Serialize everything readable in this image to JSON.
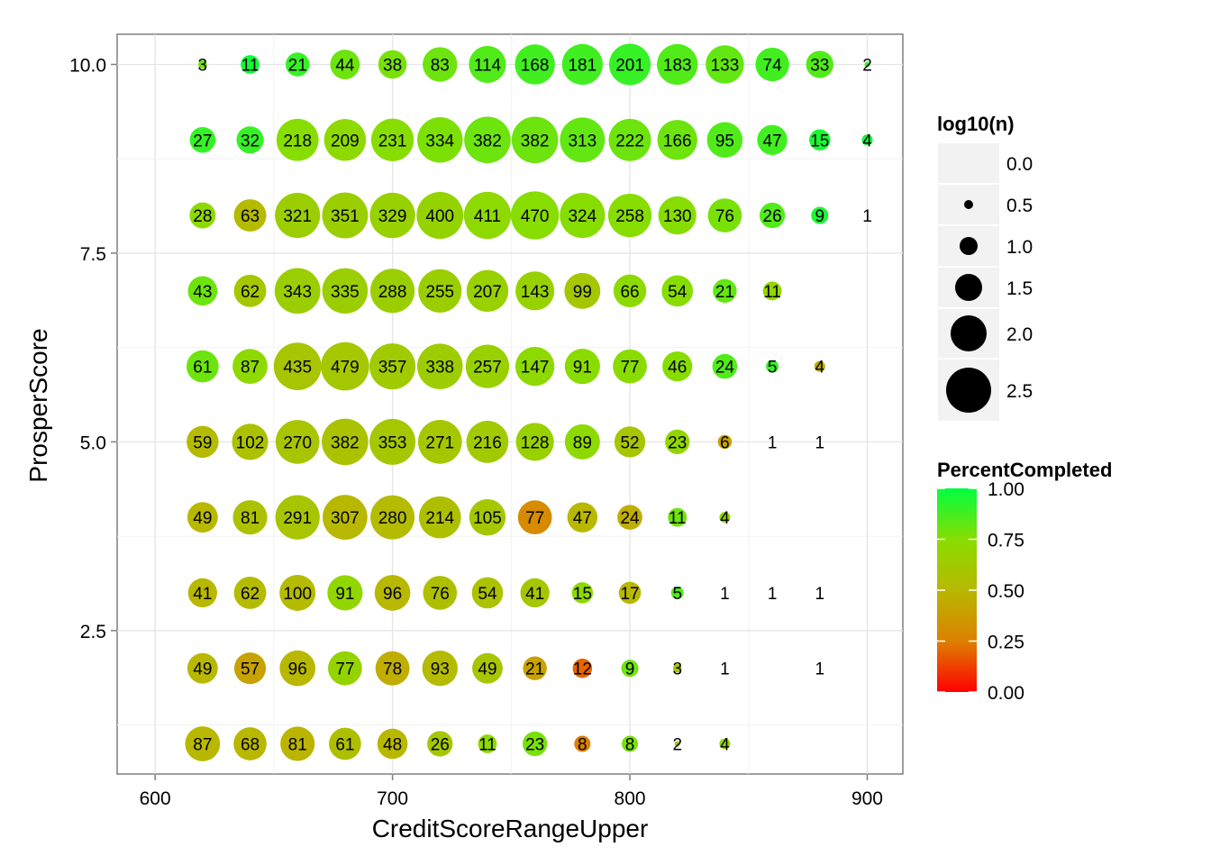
{
  "chart_data": {
    "type": "scatter",
    "title": "",
    "xlabel": "CreditScoreRangeUpper",
    "ylabel": "ProsperScore",
    "xlim": [
      584,
      915
    ],
    "ylim": [
      0.6,
      10.4
    ],
    "x_ticks": [
      600,
      700,
      800,
      900
    ],
    "x_tick_labels": [
      "600",
      "700",
      "800",
      "900"
    ],
    "y_ticks": [
      2.5,
      5.0,
      7.5,
      10.0
    ],
    "y_tick_labels": [
      "2.5",
      "5.0",
      "7.5",
      "10.0"
    ],
    "grid": true,
    "legend_placement": "right",
    "size_legend": {
      "title": "log10(n)",
      "values": [
        0.0,
        0.5,
        1.0,
        1.5,
        2.0,
        2.5
      ],
      "labels": [
        "0.0",
        "0.5",
        "1.0",
        "1.5",
        "2.0",
        "2.5"
      ]
    },
    "color_legend": {
      "title": "PercentCompleted",
      "values": [
        0.0,
        0.25,
        0.5,
        0.75,
        1.0
      ],
      "labels": [
        "0.00",
        "0.25",
        "0.50",
        "0.75",
        "1.00"
      ],
      "colors": [
        "#ff0000",
        "#dd8000",
        "#b8b800",
        "#88dd00",
        "#00ff40"
      ]
    },
    "x": [
      620,
      640,
      660,
      680,
      700,
      720,
      740,
      760,
      780,
      800,
      820,
      840,
      860,
      880,
      900
    ],
    "rows": [
      {
        "y": 10,
        "n": [
          3,
          11,
          21,
          44,
          38,
          83,
          114,
          168,
          181,
          201,
          183,
          133,
          74,
          33,
          2
        ],
        "pct": [
          0.8,
          0.97,
          0.9,
          0.8,
          0.78,
          0.8,
          0.85,
          0.88,
          0.88,
          0.9,
          0.85,
          0.82,
          0.88,
          0.85,
          0.9
        ]
      },
      {
        "y": 9,
        "n": [
          27,
          32,
          218,
          209,
          231,
          334,
          382,
          382,
          313,
          222,
          166,
          95,
          47,
          15,
          4
        ],
        "pct": [
          0.9,
          0.9,
          0.75,
          0.72,
          0.75,
          0.77,
          0.8,
          0.8,
          0.82,
          0.8,
          0.8,
          0.85,
          0.88,
          0.95,
          0.97
        ]
      },
      {
        "y": 8,
        "n": [
          28,
          63,
          321,
          351,
          329,
          400,
          411,
          470,
          324,
          258,
          130,
          76,
          26,
          9,
          1
        ],
        "pct": [
          0.72,
          0.52,
          0.65,
          0.65,
          0.67,
          0.68,
          0.72,
          0.75,
          0.75,
          0.75,
          0.75,
          0.78,
          0.85,
          0.95,
          0.9
        ]
      },
      {
        "y": 7,
        "n": [
          43,
          62,
          343,
          335,
          288,
          255,
          207,
          143,
          99,
          66,
          54,
          21,
          11,
          null,
          null
        ],
        "pct": [
          0.8,
          0.6,
          0.65,
          0.65,
          0.65,
          0.65,
          0.66,
          0.67,
          0.6,
          0.73,
          0.75,
          0.82,
          0.7,
          null,
          null
        ]
      },
      {
        "y": 6,
        "n": [
          61,
          87,
          435,
          479,
          357,
          338,
          257,
          147,
          91,
          77,
          46,
          24,
          5,
          4,
          null
        ],
        "pct": [
          0.8,
          0.72,
          0.58,
          0.6,
          0.62,
          0.64,
          0.66,
          0.72,
          0.74,
          0.74,
          0.75,
          0.85,
          0.9,
          0.45,
          null
        ]
      },
      {
        "y": 5,
        "n": [
          59,
          102,
          270,
          382,
          353,
          271,
          216,
          128,
          89,
          52,
          23,
          6,
          1,
          1,
          null
        ],
        "pct": [
          0.52,
          0.56,
          0.58,
          0.57,
          0.6,
          0.6,
          0.62,
          0.66,
          0.72,
          0.58,
          0.7,
          0.4,
          0.7,
          0.7,
          null
        ]
      },
      {
        "y": 4,
        "n": [
          49,
          81,
          291,
          307,
          280,
          214,
          105,
          77,
          47,
          24,
          11,
          4,
          null,
          null,
          null
        ],
        "pct": [
          0.5,
          0.56,
          0.58,
          0.5,
          0.52,
          0.55,
          0.6,
          0.3,
          0.5,
          0.45,
          0.8,
          0.7,
          null,
          null,
          null
        ]
      },
      {
        "y": 3,
        "n": [
          41,
          62,
          100,
          91,
          96,
          76,
          54,
          41,
          15,
          17,
          5,
          1,
          1,
          1,
          null
        ],
        "pct": [
          0.5,
          0.52,
          0.52,
          0.7,
          0.5,
          0.55,
          0.56,
          0.6,
          0.72,
          0.5,
          0.85,
          0.7,
          0.7,
          0.7,
          null
        ]
      },
      {
        "y": 2,
        "n": [
          49,
          57,
          96,
          77,
          78,
          93,
          49,
          21,
          12,
          9,
          3,
          1,
          null,
          1,
          null
        ],
        "pct": [
          0.5,
          0.4,
          0.5,
          0.68,
          0.45,
          0.52,
          0.58,
          0.4,
          0.2,
          0.8,
          0.6,
          0.7,
          null,
          0.7,
          null
        ]
      },
      {
        "y": 1,
        "n": [
          87,
          68,
          81,
          61,
          48,
          26,
          11,
          23,
          8,
          8,
          2,
          4,
          null,
          null,
          null
        ],
        "pct": [
          0.5,
          0.5,
          0.48,
          0.55,
          0.5,
          0.6,
          0.72,
          0.78,
          0.25,
          0.78,
          0.6,
          0.7,
          null,
          null,
          null
        ]
      }
    ]
  }
}
